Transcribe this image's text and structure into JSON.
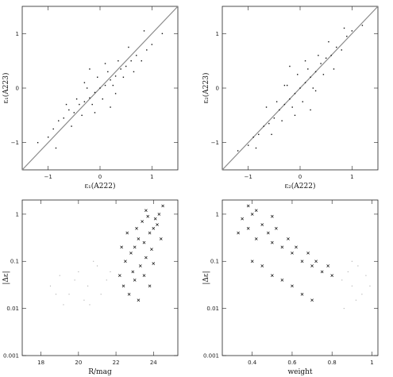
{
  "chart_data": [
    {
      "type": "scatter",
      "title": "",
      "xlabel": "ε₁(A222)",
      "ylabel": "ε₁(A223)",
      "xlim": [
        -1.5,
        1.5
      ],
      "ylim": [
        -1.5,
        1.5
      ],
      "log_y": false,
      "identity_line": true,
      "xticks": [
        {
          "v": -1,
          "label": "−1"
        },
        {
          "v": 0,
          "label": "0"
        },
        {
          "v": 1,
          "label": "1"
        }
      ],
      "yticks": [
        {
          "v": -1,
          "label": "−1"
        },
        {
          "v": 0,
          "label": "0"
        },
        {
          "v": 1,
          "label": "1"
        }
      ],
      "series": [
        {
          "marker": "dot",
          "points": [
            [
              0.0,
              0.0
            ],
            [
              0.1,
              0.05
            ],
            [
              -0.1,
              -0.08
            ],
            [
              0.2,
              0.15
            ],
            [
              -0.2,
              -0.18
            ],
            [
              0.3,
              0.22
            ],
            [
              -0.3,
              -0.25
            ],
            [
              0.4,
              0.35
            ],
            [
              -0.4,
              -0.3
            ],
            [
              0.5,
              0.4
            ],
            [
              -0.5,
              -0.45
            ],
            [
              0.6,
              0.5
            ],
            [
              -0.6,
              -0.4
            ],
            [
              0.15,
              0.3
            ],
            [
              -0.15,
              -0.3
            ],
            [
              0.25,
              0.05
            ],
            [
              -0.25,
              0.0
            ],
            [
              0.35,
              0.5
            ],
            [
              -0.35,
              -0.5
            ],
            [
              0.7,
              0.6
            ],
            [
              -0.7,
              -0.55
            ],
            [
              0.8,
              0.5
            ],
            [
              -0.8,
              -0.6
            ],
            [
              0.45,
              0.2
            ],
            [
              -0.45,
              -0.2
            ],
            [
              0.05,
              -0.2
            ],
            [
              -0.05,
              0.2
            ],
            [
              0.9,
              0.7
            ],
            [
              -0.9,
              -0.75
            ],
            [
              0.55,
              0.75
            ],
            [
              -0.55,
              -0.7
            ],
            [
              1.0,
              0.8
            ],
            [
              -1.0,
              -0.9
            ],
            [
              0.3,
              -0.1
            ],
            [
              -0.3,
              0.1
            ],
            [
              0.65,
              0.3
            ],
            [
              -0.65,
              -0.3
            ],
            [
              1.2,
              1.0
            ],
            [
              -1.2,
              -1.0
            ],
            [
              0.1,
              0.45
            ],
            [
              -0.1,
              -0.45
            ],
            [
              0.85,
              1.05
            ],
            [
              -0.85,
              -1.1
            ],
            [
              0.2,
              -0.35
            ],
            [
              -0.2,
              0.35
            ]
          ]
        }
      ]
    },
    {
      "type": "scatter",
      "title": "",
      "xlabel": "ε₂(A222)",
      "ylabel": "ε₂(A223)",
      "xlim": [
        -1.5,
        1.5
      ],
      "ylim": [
        -1.5,
        1.5
      ],
      "log_y": false,
      "identity_line": true,
      "xticks": [
        {
          "v": -1,
          "label": "−1"
        },
        {
          "v": 0,
          "label": "0"
        },
        {
          "v": 1,
          "label": "1"
        }
      ],
      "yticks": [
        {
          "v": -1,
          "label": "−1"
        },
        {
          "v": 0,
          "label": "0"
        },
        {
          "v": 1,
          "label": "1"
        }
      ],
      "series": [
        {
          "marker": "dot",
          "points": [
            [
              0.0,
              0.0
            ],
            [
              0.1,
              0.1
            ],
            [
              -0.1,
              -0.1
            ],
            [
              0.2,
              0.2
            ],
            [
              -0.2,
              -0.2
            ],
            [
              0.3,
              0.3
            ],
            [
              -0.3,
              -0.3
            ],
            [
              0.4,
              0.45
            ],
            [
              -0.4,
              -0.4
            ],
            [
              0.5,
              0.55
            ],
            [
              -0.5,
              -0.55
            ],
            [
              0.6,
              0.6
            ],
            [
              -0.6,
              -0.65
            ],
            [
              0.15,
              0.35
            ],
            [
              -0.15,
              -0.35
            ],
            [
              0.25,
              0.0
            ],
            [
              -0.25,
              0.05
            ],
            [
              0.35,
              0.6
            ],
            [
              -0.35,
              -0.6
            ],
            [
              0.7,
              0.75
            ],
            [
              -0.7,
              -0.7
            ],
            [
              0.8,
              0.7
            ],
            [
              -0.8,
              -0.85
            ],
            [
              0.45,
              0.25
            ],
            [
              -0.45,
              -0.25
            ],
            [
              0.05,
              -0.25
            ],
            [
              -0.05,
              0.25
            ],
            [
              0.9,
              0.95
            ],
            [
              -0.9,
              -0.9
            ],
            [
              0.55,
              0.85
            ],
            [
              -0.55,
              -0.85
            ],
            [
              1.0,
              1.05
            ],
            [
              -1.0,
              -1.05
            ],
            [
              0.3,
              -0.05
            ],
            [
              -0.3,
              0.05
            ],
            [
              0.65,
              0.35
            ],
            [
              -0.65,
              -0.35
            ],
            [
              1.2,
              1.15
            ],
            [
              -1.2,
              -1.15
            ],
            [
              0.1,
              0.5
            ],
            [
              -0.1,
              -0.5
            ],
            [
              0.85,
              1.1
            ],
            [
              -0.85,
              -1.1
            ],
            [
              0.2,
              -0.4
            ],
            [
              -0.2,
              0.4
            ]
          ]
        }
      ]
    },
    {
      "type": "scatter",
      "title": "",
      "xlabel": "R/mag",
      "ylabel": "|Δε|",
      "xlim": [
        17,
        25.3
      ],
      "ylim": [
        0.001,
        2
      ],
      "log_y": true,
      "identity_line": false,
      "xticks": [
        {
          "v": 18,
          "label": "18"
        },
        {
          "v": 20,
          "label": "20"
        },
        {
          "v": 22,
          "label": "22"
        },
        {
          "v": 24,
          "label": "24"
        }
      ],
      "yticks": [
        {
          "v": 0.001,
          "label": "0.001"
        },
        {
          "v": 0.01,
          "label": "0.01"
        },
        {
          "v": 0.1,
          "label": "0.1"
        },
        {
          "v": 1,
          "label": "1"
        }
      ],
      "series": [
        {
          "marker": "faint",
          "points": [
            [
              18.5,
              0.03
            ],
            [
              19.0,
              0.05
            ],
            [
              19.5,
              0.02
            ],
            [
              20.0,
              0.06
            ],
            [
              20.5,
              0.03
            ],
            [
              21.0,
              0.08
            ],
            [
              21.5,
              0.04
            ],
            [
              19.2,
              0.012
            ],
            [
              20.3,
              0.015
            ],
            [
              21.2,
              0.02
            ],
            [
              20.8,
              0.1
            ],
            [
              19.8,
              0.04
            ],
            [
              18.8,
              0.02
            ],
            [
              21.7,
              0.06
            ],
            [
              20.6,
              0.012
            ]
          ]
        },
        {
          "marker": "cross",
          "points": [
            [
              22.2,
              0.05
            ],
            [
              22.5,
              0.1
            ],
            [
              22.8,
              0.15
            ],
            [
              23.0,
              0.2
            ],
            [
              23.2,
              0.3
            ],
            [
              23.5,
              0.25
            ],
            [
              23.8,
              0.4
            ],
            [
              24.0,
              0.5
            ],
            [
              24.2,
              0.6
            ],
            [
              22.4,
              0.03
            ],
            [
              22.9,
              0.06
            ],
            [
              23.3,
              0.08
            ],
            [
              23.6,
              0.12
            ],
            [
              23.9,
              0.18
            ],
            [
              24.1,
              0.8
            ],
            [
              24.3,
              1.0
            ],
            [
              22.6,
              0.4
            ],
            [
              23.1,
              0.5
            ],
            [
              23.4,
              0.7
            ],
            [
              23.7,
              0.9
            ],
            [
              22.3,
              0.2
            ],
            [
              23.0,
              0.04
            ],
            [
              23.5,
              0.05
            ],
            [
              24.0,
              0.09
            ],
            [
              22.7,
              0.02
            ],
            [
              23.2,
              0.015
            ],
            [
              23.8,
              0.03
            ],
            [
              24.4,
              0.3
            ],
            [
              24.5,
              1.5
            ],
            [
              23.6,
              1.2
            ]
          ]
        }
      ]
    },
    {
      "type": "scatter",
      "title": "",
      "xlabel": "weight",
      "ylabel": "|Δε|",
      "xlim": [
        0.25,
        1.03
      ],
      "ylim": [
        0.001,
        2
      ],
      "log_y": true,
      "identity_line": false,
      "xticks": [
        {
          "v": 0.4,
          "label": "0.4"
        },
        {
          "v": 0.6,
          "label": "0.6"
        },
        {
          "v": 0.8,
          "label": "0.8"
        },
        {
          "v": 1.0,
          "label": "1"
        }
      ],
      "yticks": [
        {
          "v": 0.001,
          "label": "0.001"
        },
        {
          "v": 0.01,
          "label": "0.01"
        },
        {
          "v": 0.1,
          "label": "0.1"
        },
        {
          "v": 1,
          "label": "1"
        }
      ],
      "series": [
        {
          "marker": "cross",
          "points": [
            [
              0.35,
              0.8
            ],
            [
              0.38,
              0.5
            ],
            [
              0.4,
              1.0
            ],
            [
              0.42,
              0.3
            ],
            [
              0.45,
              0.6
            ],
            [
              0.48,
              0.4
            ],
            [
              0.5,
              0.25
            ],
            [
              0.52,
              0.5
            ],
            [
              0.55,
              0.2
            ],
            [
              0.58,
              0.3
            ],
            [
              0.6,
              0.15
            ],
            [
              0.62,
              0.2
            ],
            [
              0.65,
              0.1
            ],
            [
              0.68,
              0.15
            ],
            [
              0.7,
              0.08
            ],
            [
              0.72,
              0.1
            ],
            [
              0.75,
              0.06
            ],
            [
              0.78,
              0.08
            ],
            [
              0.8,
              0.05
            ],
            [
              0.4,
              0.1
            ],
            [
              0.45,
              0.08
            ],
            [
              0.5,
              0.05
            ],
            [
              0.55,
              0.04
            ],
            [
              0.6,
              0.03
            ],
            [
              0.65,
              0.02
            ],
            [
              0.7,
              0.015
            ],
            [
              0.38,
              1.5
            ],
            [
              0.42,
              1.2
            ],
            [
              0.33,
              0.4
            ],
            [
              0.5,
              0.9
            ]
          ]
        },
        {
          "marker": "faint",
          "points": [
            [
              0.85,
              0.04
            ],
            [
              0.9,
              0.03
            ],
            [
              0.95,
              0.02
            ],
            [
              0.88,
              0.06
            ],
            [
              0.92,
              0.015
            ],
            [
              0.97,
              0.05
            ],
            [
              0.86,
              0.01
            ],
            [
              0.93,
              0.08
            ],
            [
              0.99,
              0.03
            ],
            [
              0.9,
              0.1
            ]
          ]
        }
      ]
    }
  ]
}
